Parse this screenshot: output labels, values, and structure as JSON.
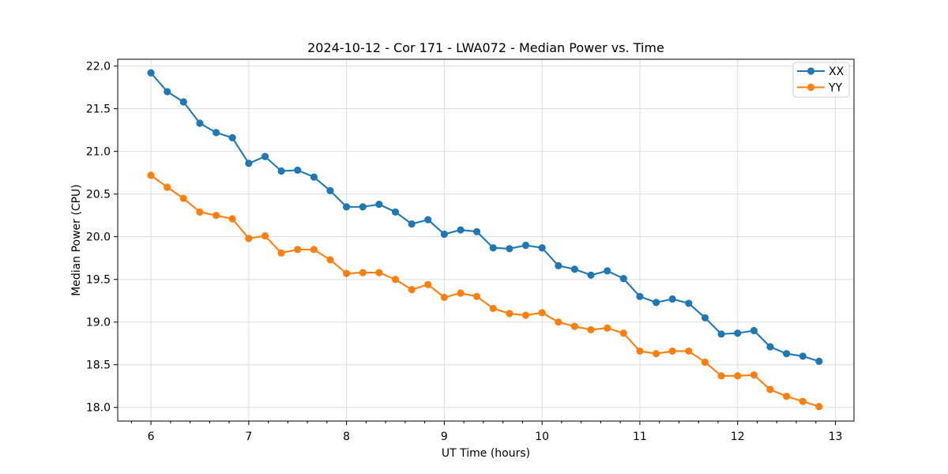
{
  "figure": {
    "title": "2024-10-12 - Cor 171 - LWA072 - Median Power vs. Time",
    "xlabel": "UT Time (hours)",
    "ylabel": "Median Power (CPU)"
  },
  "colors": {
    "series_xx": "#1f77b4",
    "series_yy": "#ff7f0e",
    "grid": "#dddddd",
    "spine": "#000000",
    "legend_border": "#cccccc",
    "background": "#ffffff"
  },
  "chart_data": {
    "type": "line",
    "title": "2024-10-12 - Cor 171 - LWA072 - Median Power vs. Time",
    "xlabel": "UT Time (hours)",
    "ylabel": "Median Power (CPU)",
    "xlim": [
      5.66,
      13.19
    ],
    "ylim": [
      17.84,
      22.08
    ],
    "xticks": [
      6,
      7,
      8,
      9,
      10,
      11,
      12,
      13
    ],
    "yticks": [
      18.0,
      18.5,
      19.0,
      19.5,
      20.0,
      20.5,
      21.0,
      21.5,
      22.0
    ],
    "x_minor_step": 0.2,
    "grid": true,
    "legend_position": "upper right",
    "marker": "o",
    "x": [
      6.0,
      6.167,
      6.333,
      6.5,
      6.667,
      6.833,
      7.0,
      7.167,
      7.333,
      7.5,
      7.667,
      7.833,
      8.0,
      8.167,
      8.333,
      8.5,
      8.667,
      8.833,
      9.0,
      9.167,
      9.333,
      9.5,
      9.667,
      9.833,
      10.0,
      10.167,
      10.333,
      10.5,
      10.667,
      10.833,
      11.0,
      11.167,
      11.333,
      11.5,
      11.667,
      11.833,
      12.0,
      12.167,
      12.333,
      12.5,
      12.667,
      12.833
    ],
    "series": [
      {
        "name": "XX",
        "color": "#1f77b4",
        "values": [
          21.92,
          21.7,
          21.58,
          21.33,
          21.22,
          21.16,
          20.86,
          20.94,
          20.77,
          20.78,
          20.7,
          20.54,
          20.35,
          20.35,
          20.38,
          20.29,
          20.15,
          20.2,
          20.03,
          20.08,
          20.06,
          19.87,
          19.86,
          19.9,
          19.87,
          19.66,
          19.62,
          19.55,
          19.6,
          19.51,
          19.3,
          19.23,
          19.27,
          19.22,
          19.05,
          18.86,
          18.87,
          18.9,
          18.71,
          18.63,
          18.6,
          18.54
        ]
      },
      {
        "name": "YY",
        "color": "#ff7f0e",
        "values": [
          20.72,
          20.58,
          20.45,
          20.29,
          20.25,
          20.21,
          19.98,
          20.01,
          19.81,
          19.85,
          19.85,
          19.73,
          19.57,
          19.58,
          19.58,
          19.5,
          19.38,
          19.44,
          19.29,
          19.34,
          19.3,
          19.16,
          19.1,
          19.08,
          19.11,
          19.0,
          18.95,
          18.91,
          18.93,
          18.87,
          18.66,
          18.63,
          18.66,
          18.66,
          18.53,
          18.37,
          18.37,
          18.38,
          18.21,
          18.13,
          18.07,
          18.01
        ]
      }
    ]
  }
}
